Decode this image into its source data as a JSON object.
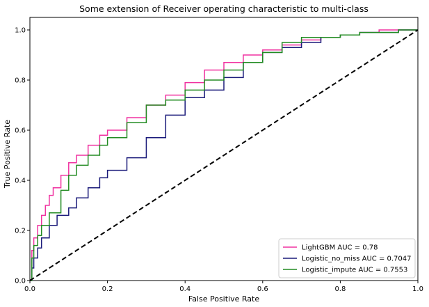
{
  "chart_data": {
    "type": "line",
    "title": "Some extension of Receiver operating characteristic to multi-class",
    "xlabel": "False Positive Rate",
    "ylabel": "True Positive Rate",
    "xlim": [
      0.0,
      1.0
    ],
    "ylim": [
      0.0,
      1.05
    ],
    "xticks": [
      "0.0",
      "0.2",
      "0.4",
      "0.6",
      "0.8",
      "1.0"
    ],
    "yticks": [
      "0.0",
      "0.2",
      "0.4",
      "0.6",
      "0.8",
      "1.0"
    ],
    "legend_position": "lower-right",
    "grid": false,
    "series": [
      {
        "name": "LightGBM AUC = 0.78",
        "color": "#f032a0",
        "x": [
          0,
          0.005,
          0.01,
          0.02,
          0.03,
          0.04,
          0.05,
          0.06,
          0.08,
          0.1,
          0.12,
          0.15,
          0.18,
          0.2,
          0.25,
          0.3,
          0.35,
          0.4,
          0.45,
          0.5,
          0.55,
          0.6,
          0.65,
          0.7,
          0.75,
          0.8,
          0.85,
          0.9,
          0.95,
          1.0
        ],
        "y": [
          0,
          0.12,
          0.17,
          0.22,
          0.26,
          0.3,
          0.34,
          0.37,
          0.42,
          0.47,
          0.5,
          0.54,
          0.58,
          0.6,
          0.65,
          0.7,
          0.74,
          0.79,
          0.84,
          0.87,
          0.9,
          0.92,
          0.94,
          0.96,
          0.97,
          0.98,
          0.99,
          1.0,
          1.0,
          1.0
        ]
      },
      {
        "name": "Logistic_no_miss AUC = 0.7047",
        "color": "#1a1a7a",
        "x": [
          0,
          0.005,
          0.01,
          0.02,
          0.03,
          0.05,
          0.07,
          0.1,
          0.12,
          0.15,
          0.18,
          0.2,
          0.25,
          0.3,
          0.35,
          0.4,
          0.45,
          0.5,
          0.55,
          0.6,
          0.65,
          0.7,
          0.75,
          0.8,
          0.85,
          0.9,
          0.95,
          1.0
        ],
        "y": [
          0,
          0.05,
          0.09,
          0.13,
          0.17,
          0.22,
          0.26,
          0.29,
          0.33,
          0.37,
          0.41,
          0.44,
          0.49,
          0.57,
          0.66,
          0.73,
          0.76,
          0.81,
          0.87,
          0.91,
          0.93,
          0.95,
          0.97,
          0.98,
          0.99,
          0.99,
          1.0,
          1.0
        ]
      },
      {
        "name": "Logistic_impute AUC = 0.7553",
        "color": "#228b22",
        "x": [
          0,
          0.005,
          0.01,
          0.02,
          0.03,
          0.05,
          0.08,
          0.1,
          0.12,
          0.15,
          0.18,
          0.2,
          0.25,
          0.3,
          0.35,
          0.4,
          0.45,
          0.5,
          0.55,
          0.6,
          0.65,
          0.7,
          0.75,
          0.8,
          0.85,
          0.9,
          0.95,
          1.0
        ],
        "y": [
          0,
          0.09,
          0.14,
          0.18,
          0.22,
          0.27,
          0.36,
          0.42,
          0.46,
          0.5,
          0.54,
          0.57,
          0.63,
          0.7,
          0.72,
          0.76,
          0.8,
          0.84,
          0.87,
          0.91,
          0.95,
          0.97,
          0.97,
          0.98,
          0.99,
          0.99,
          1.0,
          1.0
        ]
      },
      {
        "name": "",
        "color": "#000000",
        "dashed": true,
        "x": [
          0,
          1.0
        ],
        "y": [
          0,
          1.0
        ]
      }
    ]
  }
}
